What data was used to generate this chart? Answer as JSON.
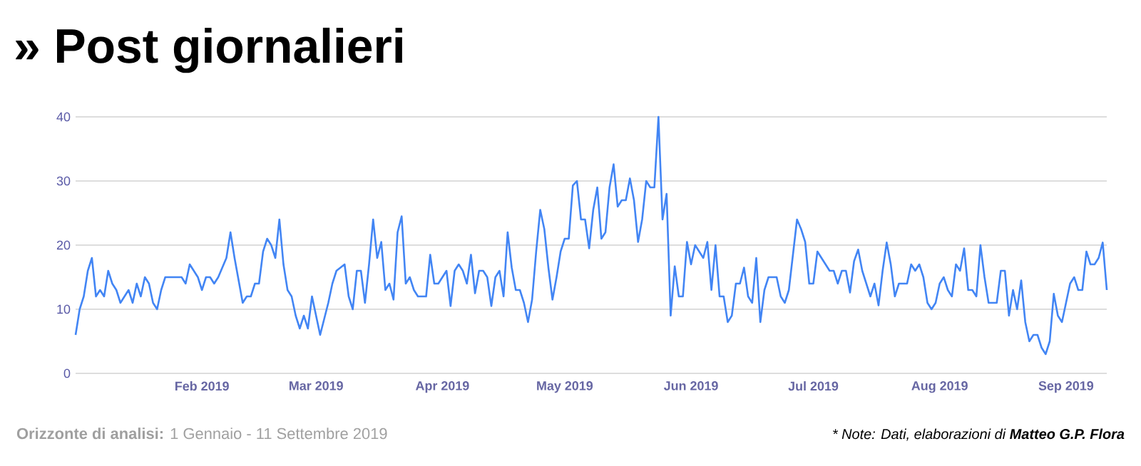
{
  "chart_data": {
    "type": "line",
    "title": "» Post giornalieri",
    "x": [
      "2019-01-01",
      "2019-01-02",
      "2019-01-03",
      "2019-01-04",
      "2019-01-05",
      "2019-01-06",
      "2019-01-07",
      "2019-01-08",
      "2019-01-09",
      "2019-01-10",
      "2019-01-11",
      "2019-01-12",
      "2019-01-14",
      "2019-01-15",
      "2019-01-16",
      "2019-01-17",
      "2019-01-18",
      "2019-01-19",
      "2019-01-20",
      "2019-01-21",
      "2019-01-22",
      "2019-01-23",
      "2019-01-27",
      "2019-01-28",
      "2019-01-29",
      "2019-01-31",
      "2019-02-01",
      "2019-02-02",
      "2019-02-03",
      "2019-02-04",
      "2019-02-05",
      "2019-02-07",
      "2019-02-08",
      "2019-02-09",
      "2019-02-11",
      "2019-02-12",
      "2019-02-13",
      "2019-02-14",
      "2019-02-15",
      "2019-02-16",
      "2019-02-17",
      "2019-02-18",
      "2019-02-19",
      "2019-02-20",
      "2019-02-21",
      "2019-02-22",
      "2019-02-23",
      "2019-02-24",
      "2019-02-25",
      "2019-02-26",
      "2019-02-27",
      "2019-02-28",
      "2019-03-01",
      "2019-03-02",
      "2019-03-04",
      "2019-03-05",
      "2019-03-06",
      "2019-03-08",
      "2019-03-09",
      "2019-03-10",
      "2019-03-11",
      "2019-03-12",
      "2019-03-13",
      "2019-03-14",
      "2019-03-15",
      "2019-03-16",
      "2019-03-17",
      "2019-03-18",
      "2019-03-19",
      "2019-03-20",
      "2019-03-21",
      "2019-03-22",
      "2019-03-23",
      "2019-03-24",
      "2019-03-25",
      "2019-03-26",
      "2019-03-28",
      "2019-03-29",
      "2019-03-30",
      "2019-03-31",
      "2019-04-02",
      "2019-04-03",
      "2019-04-04",
      "2019-04-05",
      "2019-04-06",
      "2019-04-07",
      "2019-04-08",
      "2019-04-09",
      "2019-04-10",
      "2019-04-11",
      "2019-04-12",
      "2019-04-13",
      "2019-04-14",
      "2019-04-15",
      "2019-04-16",
      "2019-04-17",
      "2019-04-18",
      "2019-04-19",
      "2019-04-20",
      "2019-04-21",
      "2019-04-22",
      "2019-04-23",
      "2019-04-24",
      "2019-04-25",
      "2019-04-26",
      "2019-04-27",
      "2019-04-28",
      "2019-04-29",
      "2019-04-30",
      "2019-05-01",
      "2019-05-02",
      "2019-05-03",
      "2019-05-04",
      "2019-05-05",
      "2019-05-06",
      "2019-05-07",
      "2019-05-08",
      "2019-05-09",
      "2019-05-10",
      "2019-05-11",
      "2019-05-12",
      "2019-05-13",
      "2019-05-14",
      "2019-05-15",
      "2019-05-16",
      "2019-05-17",
      "2019-05-18",
      "2019-05-19",
      "2019-05-20",
      "2019-05-21",
      "2019-05-22",
      "2019-05-23",
      "2019-05-24",
      "2019-05-25",
      "2019-05-26",
      "2019-05-27",
      "2019-05-28",
      "2019-05-29",
      "2019-05-30",
      "2019-05-31",
      "2019-06-01",
      "2019-06-02",
      "2019-06-03",
      "2019-06-04",
      "2019-06-05",
      "2019-06-06",
      "2019-06-07",
      "2019-06-08",
      "2019-06-09",
      "2019-06-10",
      "2019-06-11",
      "2019-06-12",
      "2019-06-13",
      "2019-06-14",
      "2019-06-15",
      "2019-06-16",
      "2019-06-17",
      "2019-06-18",
      "2019-06-19",
      "2019-06-20",
      "2019-06-22",
      "2019-06-23",
      "2019-06-24",
      "2019-06-25",
      "2019-06-27",
      "2019-06-28",
      "2019-06-29",
      "2019-06-30",
      "2019-07-01",
      "2019-07-02",
      "2019-07-03",
      "2019-07-05",
      "2019-07-06",
      "2019-07-07",
      "2019-07-08",
      "2019-07-09",
      "2019-07-10",
      "2019-07-11",
      "2019-07-12",
      "2019-07-13",
      "2019-07-15",
      "2019-07-16",
      "2019-07-17",
      "2019-07-18",
      "2019-07-19",
      "2019-07-20",
      "2019-07-21",
      "2019-07-22",
      "2019-07-24",
      "2019-07-25",
      "2019-07-26",
      "2019-07-27",
      "2019-07-28",
      "2019-07-29",
      "2019-07-30",
      "2019-07-31",
      "2019-08-01",
      "2019-08-02",
      "2019-08-03",
      "2019-08-04",
      "2019-08-05",
      "2019-08-06",
      "2019-08-07",
      "2019-08-08",
      "2019-08-09",
      "2019-08-10",
      "2019-08-11",
      "2019-08-12",
      "2019-08-13",
      "2019-08-15",
      "2019-08-16",
      "2019-08-17",
      "2019-08-18",
      "2019-08-19",
      "2019-08-20",
      "2019-08-21",
      "2019-08-22",
      "2019-08-23",
      "2019-08-24",
      "2019-08-25",
      "2019-08-26",
      "2019-08-27",
      "2019-08-28",
      "2019-08-29",
      "2019-08-30",
      "2019-08-31",
      "2019-09-01",
      "2019-09-02",
      "2019-09-03",
      "2019-09-04",
      "2019-09-05",
      "2019-09-06",
      "2019-09-07",
      "2019-09-08",
      "2019-09-09",
      "2019-09-10",
      "2019-09-11"
    ],
    "series": [
      {
        "color": "#4285f4",
        "values": [
          6,
          10,
          12,
          16,
          18,
          12,
          13,
          12,
          16,
          14,
          13,
          11,
          13,
          11,
          14,
          12,
          15,
          14,
          11,
          10,
          13,
          15,
          15,
          14,
          17,
          15,
          13,
          15,
          15,
          14,
          15,
          18,
          22,
          18,
          11,
          12,
          12,
          14,
          14,
          19,
          21,
          20,
          18,
          24,
          17,
          13,
          12,
          9,
          7,
          9,
          7,
          12,
          9,
          6,
          11,
          14,
          16,
          17,
          12,
          10,
          16,
          16,
          11,
          17,
          24,
          18,
          20.5,
          13,
          14,
          11.5,
          22,
          24.5,
          14,
          15,
          13,
          12,
          12,
          18.5,
          14,
          14,
          16,
          10.5,
          16,
          17,
          16,
          14,
          18.5,
          12.5,
          16,
          16,
          15,
          10.5,
          15,
          16,
          12,
          22,
          16.5,
          13,
          13,
          11,
          8,
          11.5,
          19,
          25.5,
          22.5,
          16.5,
          11.5,
          15,
          19,
          21,
          21,
          29.3,
          30,
          24,
          24,
          19.5,
          25.5,
          29,
          21,
          22,
          29,
          32.6,
          26,
          27,
          27,
          30.4,
          27,
          20.5,
          24,
          30,
          29,
          29,
          40,
          24,
          28,
          9,
          16.7,
          12,
          12,
          20.5,
          17,
          20,
          19,
          18,
          20.5,
          13,
          20,
          12,
          12,
          8,
          9,
          14,
          14,
          16.5,
          12,
          11,
          18,
          8,
          13,
          15,
          15,
          12,
          11,
          13,
          24,
          22.5,
          20.5,
          14,
          14,
          19,
          18,
          16,
          16,
          14,
          16,
          16,
          12.6,
          17.5,
          19.3,
          16,
          12,
          14,
          10.6,
          16,
          20.4,
          17,
          12,
          14,
          14,
          17,
          16,
          17,
          15,
          11,
          10,
          11,
          14,
          15,
          13,
          12,
          17,
          16,
          19.5,
          13,
          13,
          12,
          20,
          15,
          11,
          11,
          16,
          16,
          9,
          13,
          10,
          14.5,
          8,
          5,
          6,
          6,
          4,
          3,
          5,
          12.4,
          9,
          8,
          11,
          14,
          15,
          13,
          13,
          19,
          17,
          17,
          18,
          20.4,
          13
        ]
      }
    ],
    "xlim": [
      "2019-01-01",
      "2019-09-11"
    ],
    "xticks": [
      {
        "value": "2019-02-01",
        "label": "Feb 2019"
      },
      {
        "value": "2019-03-01",
        "label": "Mar 2019"
      },
      {
        "value": "2019-04-01",
        "label": "Apr 2019"
      },
      {
        "value": "2019-05-01",
        "label": "May 2019"
      },
      {
        "value": "2019-06-01",
        "label": "Jun 2019"
      },
      {
        "value": "2019-07-01",
        "label": "Jul 2019"
      },
      {
        "value": "2019-08-01",
        "label": "Aug 2019"
      },
      {
        "value": "2019-09-01",
        "label": "Sep 2019"
      }
    ],
    "ylim": [
      0,
      40
    ],
    "yticks": [
      0,
      10,
      20,
      30,
      40
    ],
    "grid": "y",
    "line_style": "solid",
    "marker": "none",
    "annotations": [
      "**Orizzonte di analisi:** 1 Gennaio - 11 Settembre 2019",
      "* Note: Dati, elaborazioni di **Matteo G.P. Flora**"
    ]
  }
}
